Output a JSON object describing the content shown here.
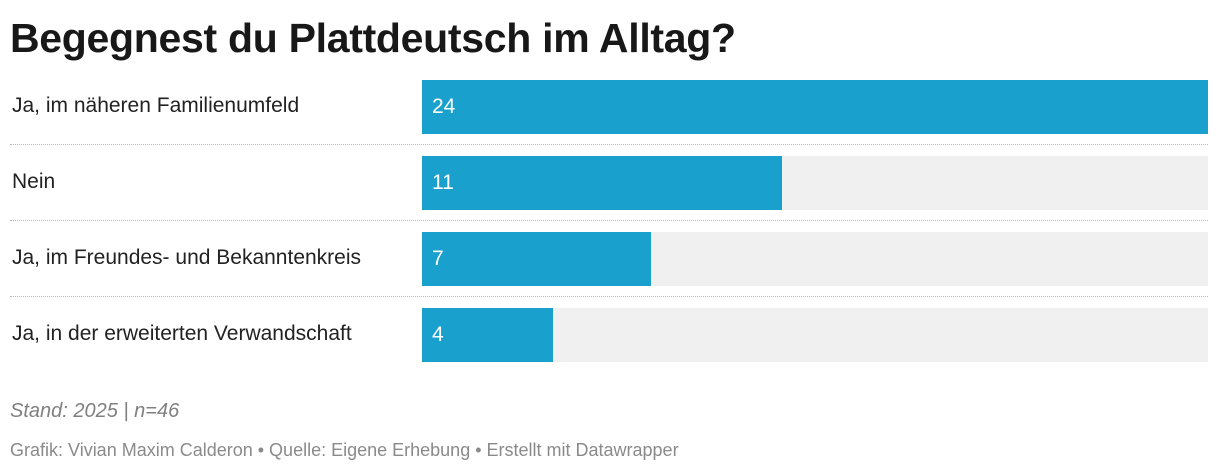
{
  "title": "Begegnest du Plattdeutsch im Alltag?",
  "chart_data": {
    "type": "bar",
    "orientation": "horizontal",
    "title": "Begegnest du Plattdeutsch im Alltag?",
    "categories": [
      "Ja, im näheren Familienumfeld",
      "Nein",
      "Ja, im Freundes- und Bekanntenkreis",
      "Ja, in der erweiterten Verwandschaft"
    ],
    "values": [
      24,
      11,
      7,
      4
    ],
    "value_labels": [
      "24",
      "11",
      "7",
      "4"
    ],
    "xlim": [
      0,
      24
    ],
    "bar_color": "#1aa0cc",
    "track_color": "#f0f0f0",
    "xlabel": "",
    "ylabel": "",
    "grid": false
  },
  "note": "Stand: 2025 | n=46",
  "credit": "Grafik: Vivian Maxim Calderon • Quelle: Eigene Erhebung • Erstellt mit Datawrapper"
}
